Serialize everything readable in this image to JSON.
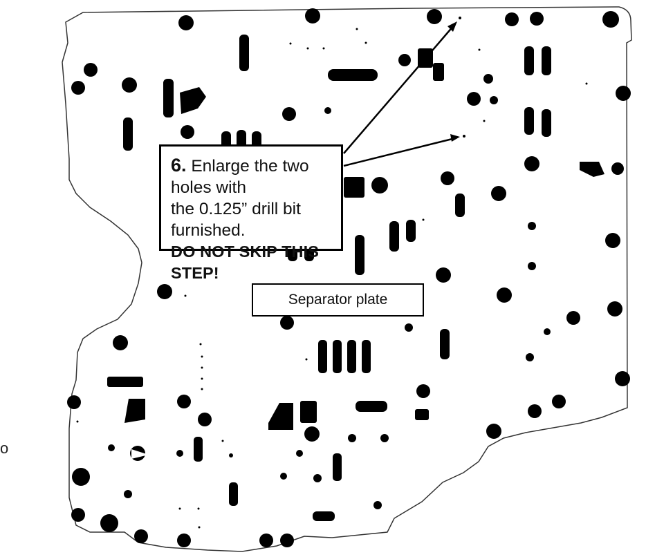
{
  "callout": {
    "step_number": "6.",
    "line1": "Enlarge the two holes with",
    "line2": "the 0.125” drill bit furnished.",
    "warning": "DO NOT SKIP THIS STEP!"
  },
  "part_label": "Separator plate",
  "stray_text": "o",
  "colors": {
    "ink": "#000000",
    "background": "#ffffff"
  }
}
